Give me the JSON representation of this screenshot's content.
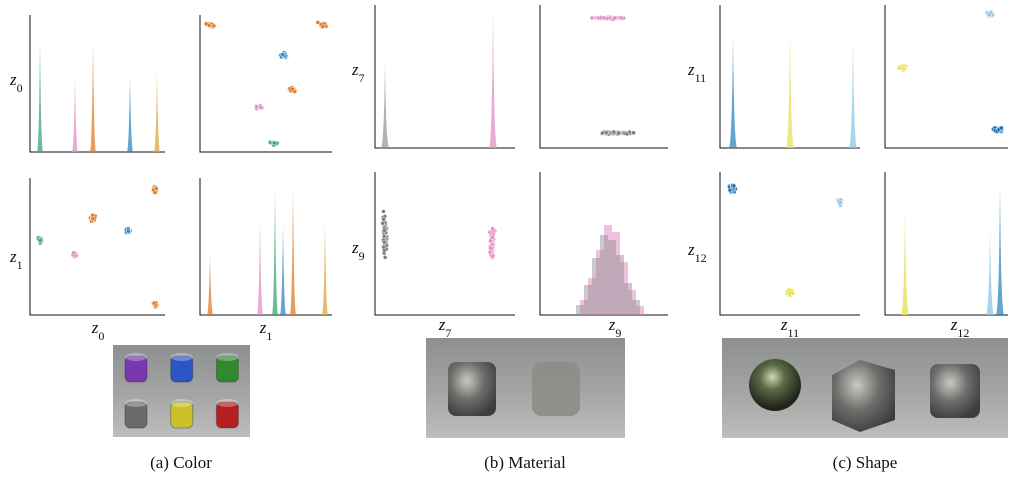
{
  "panels": [
    {
      "caption": "(a) Color",
      "labels": [
        {
          "symbol": "z",
          "index": "0"
        },
        {
          "symbol": "z",
          "index": "1"
        }
      ]
    },
    {
      "caption": "(b) Material",
      "labels": [
        {
          "symbol": "z",
          "index": "7"
        },
        {
          "symbol": "z",
          "index": "9"
        }
      ]
    },
    {
      "caption": "(c) Shape",
      "labels": [
        {
          "symbol": "z",
          "index": "11"
        },
        {
          "symbol": "z",
          "index": "12"
        }
      ]
    }
  ]
}
